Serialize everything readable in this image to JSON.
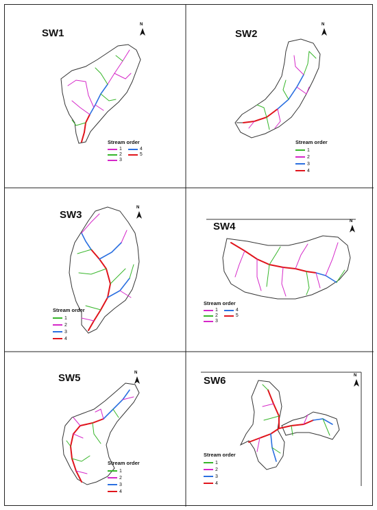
{
  "legend_title": "Stream order",
  "order_colors": {
    "1": "#35b528",
    "2": "#d526c8",
    "3": "#2a6fe0",
    "4": "#e0141b",
    "5": "#e0141b"
  },
  "panels": [
    {
      "id": "sw1",
      "title": "SW1",
      "north": "N",
      "legend_layout": "two-col",
      "orders": [
        {
          "label": "1",
          "color": "#d526c8"
        },
        {
          "label": "4",
          "color": "#2a6fe0"
        },
        {
          "label": "2",
          "color": "#35b528"
        },
        {
          "label": "5",
          "color": "#e0141b"
        },
        {
          "label": "3",
          "color": "#d526c8"
        }
      ]
    },
    {
      "id": "sw2",
      "title": "SW2",
      "north": "N",
      "legend_layout": "one-col",
      "orders": [
        {
          "label": "1",
          "color": "#35b528"
        },
        {
          "label": "2",
          "color": "#d526c8"
        },
        {
          "label": "3",
          "color": "#2a6fe0"
        },
        {
          "label": "4",
          "color": "#e0141b"
        }
      ]
    },
    {
      "id": "sw3",
      "title": "SW3",
      "north": "N",
      "legend_layout": "one-col",
      "orders": [
        {
          "label": "1",
          "color": "#35b528"
        },
        {
          "label": "2",
          "color": "#d526c8"
        },
        {
          "label": "3",
          "color": "#2a6fe0"
        },
        {
          "label": "4",
          "color": "#e0141b"
        }
      ]
    },
    {
      "id": "sw4",
      "title": "SW4",
      "north": "N",
      "legend_layout": "two-col",
      "orders": [
        {
          "label": "1",
          "color": "#d526c8"
        },
        {
          "label": "4",
          "color": "#2a6fe0"
        },
        {
          "label": "2",
          "color": "#35b528"
        },
        {
          "label": "5",
          "color": "#e0141b"
        },
        {
          "label": "3",
          "color": "#d526c8"
        }
      ]
    },
    {
      "id": "sw5",
      "title": "SW5",
      "north": "N",
      "legend_layout": "one-col",
      "orders": [
        {
          "label": "1",
          "color": "#35b528"
        },
        {
          "label": "2",
          "color": "#d526c8"
        },
        {
          "label": "3",
          "color": "#2a6fe0"
        },
        {
          "label": "4",
          "color": "#e0141b"
        }
      ]
    },
    {
      "id": "sw6",
      "title": "SW6",
      "north": "N",
      "legend_layout": "one-col",
      "orders": [
        {
          "label": "1",
          "color": "#35b528"
        },
        {
          "label": "2",
          "color": "#d526c8"
        },
        {
          "label": "3",
          "color": "#2a6fe0"
        },
        {
          "label": "4",
          "color": "#e0141b"
        }
      ]
    }
  ]
}
